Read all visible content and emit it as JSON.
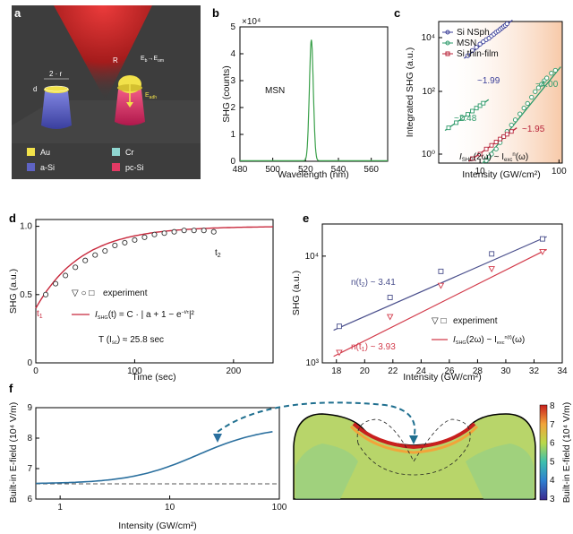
{
  "panel_labels": {
    "a": "a",
    "b": "b",
    "c": "c",
    "d": "d",
    "e": "e",
    "f": "f"
  },
  "panel_a": {
    "r_label": "2 · r",
    "d_label": "d",
    "R_label": "R",
    "Eb_label": "E",
    "Eb_sub": "b",
    "arrow": "→",
    "Eom_label": "E",
    "Eom_sub": "om",
    "Edh_label": "E",
    "Edh_sub": "adh",
    "legend": [
      {
        "label": "Au",
        "color": "#f2e24a"
      },
      {
        "label": "Cr",
        "color": "#8fd6d0"
      },
      {
        "label": "a-Si",
        "color": "#5e63c4"
      },
      {
        "label": "pc-Si",
        "color": "#e23a64"
      }
    ]
  },
  "chart_data": [
    {
      "panel": "b",
      "type": "line",
      "title": "",
      "annotation": "MSN",
      "multiplier": "×10⁴",
      "xlabel": "Wavelength (nm)",
      "ylabel": "SHG (counts)",
      "xlim": [
        480,
        570
      ],
      "ylim": [
        0,
        5
      ],
      "xticks": [
        "480",
        "500",
        "520",
        "540",
        "560"
      ],
      "yticks": [
        "0",
        "1",
        "2",
        "3",
        "4",
        "5"
      ],
      "peak_center": 523.5,
      "peak_height": 4.5,
      "peak_width": 1.2,
      "baseline": 0.02,
      "color": "#3aa04a"
    },
    {
      "panel": "c",
      "type": "scatter",
      "xlabel": "Intensity (GW/cm²)",
      "ylabel": "Integrated SHG (a.u.)",
      "xscale": "log",
      "yscale": "log",
      "xlim": [
        3,
        110
      ],
      "ylim": [
        0.6,
        600
      ],
      "xticks": [
        "10",
        "100"
      ],
      "yticks": [
        "10⁰",
        "10²",
        "10⁴"
      ],
      "formula_main": "I",
      "formula_sub": "SHG",
      "formula_mid": "(2ω) ~ I",
      "formula_sub2": "exc",
      "formula_sup": "n",
      "formula_end": "(ω)",
      "series": [
        {
          "name": "Si NSph",
          "color": "#3b3f98",
          "marker": "circle",
          "slope_label": "~1.99",
          "x": [
            7,
            8,
            9,
            10,
            11,
            12,
            13,
            14,
            15,
            16,
            17,
            18,
            19,
            20,
            21,
            22
          ],
          "y": [
            2,
            3,
            3.9,
            5,
            6,
            7.1,
            8,
            9.5,
            11,
            12.7,
            14,
            16,
            18,
            20,
            22,
            25
          ]
        },
        {
          "name": "MSN",
          "color": "#2e9a6a",
          "marker": "circle",
          "slope_label": "~4.00",
          "x": [
            12,
            13,
            14,
            16,
            18,
            20,
            22,
            25,
            28,
            32,
            36,
            40,
            45,
            50,
            55,
            60,
            65,
            70,
            80,
            90
          ],
          "y": [
            0.6,
            0.8,
            1,
            1.5,
            2.5,
            4,
            6,
            10,
            15,
            24,
            38,
            55,
            90,
            140,
            190,
            250,
            330,
            410,
            600,
            750
          ]
        },
        {
          "name": "MSN-sq",
          "color": "#2e9a6a",
          "marker": "square",
          "slope_label": "~2.48",
          "x": [
            4,
            5,
            6,
            7,
            8,
            9,
            10,
            11
          ],
          "y": [
            2,
            3,
            4.3,
            5.8,
            7.5,
            9.5,
            11.5,
            14
          ]
        },
        {
          "name": "Si thin-film",
          "color": "#b8243a",
          "marker": "square",
          "slope_label": "~1.95",
          "x": [
            8,
            10,
            12,
            14,
            16,
            18,
            20,
            22,
            25
          ],
          "y": [
            0.7,
            1,
            1.5,
            2,
            2.6,
            3.3,
            4,
            4.8,
            6
          ]
        }
      ]
    },
    {
      "panel": "d",
      "type": "line",
      "xlabel": "Time (sec)",
      "ylabel": "SHG (a.u.)",
      "xlim": [
        0,
        240
      ],
      "ylim": [
        0,
        1.05
      ],
      "xticks": [
        "0",
        "100",
        "200"
      ],
      "yticks": [
        "0",
        "0.5",
        "1.0"
      ],
      "t1_label": "t",
      "t1_sub": "1",
      "t2_label": "t",
      "t2_sub": "2",
      "legend_experiment": "experiment",
      "legend_fit_main": "I",
      "legend_fit_sub": "SHG",
      "legend_fit_rest": "(t) = C · | a + 1 − e",
      "legend_fit_sup": "−t/τ",
      "legend_fit_end": "|²",
      "tau_text": "T (I",
      "tau_sub": "sc",
      "tau_end": ") ≈ 25.8 sec",
      "fit_a": 0.4,
      "fit_tau": 25.8,
      "points_x": [
        10,
        20,
        30,
        40,
        50,
        60,
        70,
        80,
        90,
        100,
        110,
        120,
        130,
        140,
        150,
        160,
        170,
        180
      ],
      "points_y": [
        0.5,
        0.58,
        0.64,
        0.7,
        0.75,
        0.79,
        0.82,
        0.86,
        0.88,
        0.9,
        0.92,
        0.94,
        0.95,
        0.96,
        0.97,
        0.97,
        0.97,
        0.96
      ],
      "fit_color": "#c8283c",
      "fit_color2": "#2f3f8f"
    },
    {
      "panel": "e",
      "type": "scatter",
      "xlabel": "Intensity (GW/cm²)",
      "ylabel": "SHG (a.u.)",
      "yscale": "log",
      "xlim": [
        17,
        34
      ],
      "ylim": [
        1000,
        20000
      ],
      "xticks": [
        "18",
        "20",
        "22",
        "24",
        "26",
        "28",
        "30",
        "32",
        "34"
      ],
      "yticks": [
        "10³",
        "10⁴"
      ],
      "n2_label": "n(t",
      "n2_sub": "2",
      "n2_end": ") ~ 3.41",
      "n1_label": "n(t",
      "n1_sub": "1",
      "n1_end": ") ~ 3.93",
      "legend_experiment": "experiment",
      "legend_fit": "I",
      "legend_fit_sub": "SHG",
      "legend_fit_rest": "(2ω) ~ I",
      "legend_fit_sub2": "exc",
      "legend_fit_sup": "n(t)",
      "legend_fit_end": "(ω)",
      "series": [
        {
          "name": "t2",
          "color": "#4a4f8c",
          "marker": "square",
          "x": [
            18.2,
            21.8,
            25.4,
            29.0,
            32.6
          ],
          "y": [
            2200,
            4100,
            7200,
            10500,
            14500
          ]
        },
        {
          "name": "t1",
          "color": "#d23a4a",
          "marker": "triangle",
          "x": [
            18.2,
            21.8,
            25.4,
            29.0,
            32.6
          ],
          "y": [
            1250,
            2700,
            5300,
            7600,
            11000
          ]
        }
      ]
    },
    {
      "panel": "f",
      "type": "line",
      "xlabel": "Intensity (GW/cm²)",
      "ylabel": "Built-in E-field (10⁴ V/m)",
      "xscale": "log",
      "xlim": [
        0.6,
        100
      ],
      "ylim": [
        6,
        9
      ],
      "xticks": [
        "1",
        "10",
        "100"
      ],
      "yticks": [
        "6",
        "7",
        "8",
        "9"
      ],
      "baseline": 6.5,
      "color": "#2a6f9e",
      "colorbar_label": "Built-in E-field (10⁴ V/m)",
      "colorbar_ticks": [
        "3",
        "4",
        "5",
        "6",
        "7",
        "8"
      ]
    }
  ]
}
